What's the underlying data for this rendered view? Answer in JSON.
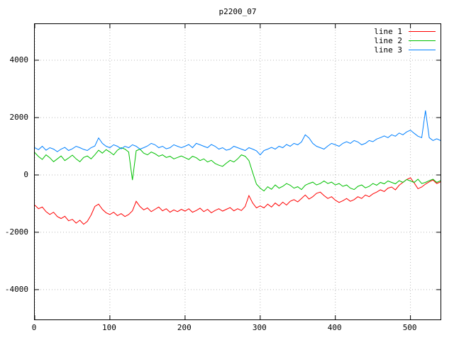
{
  "chart_data": {
    "type": "line",
    "title": "p2200_07",
    "xlabel": "",
    "ylabel": "",
    "xlim": [
      0,
      540
    ],
    "ylim": [
      -5040,
      5260
    ],
    "xticks": [
      0,
      100,
      200,
      300,
      400,
      500
    ],
    "yticks": [
      -4000,
      -2000,
      0,
      2000,
      4000
    ],
    "grid": true,
    "legend_position": "top-right",
    "x": [
      0,
      5,
      10,
      15,
      20,
      25,
      30,
      35,
      40,
      45,
      50,
      55,
      60,
      65,
      70,
      75,
      80,
      85,
      90,
      95,
      100,
      105,
      110,
      115,
      120,
      125,
      130,
      135,
      140,
      145,
      150,
      155,
      160,
      165,
      170,
      175,
      180,
      185,
      190,
      195,
      200,
      205,
      210,
      215,
      220,
      225,
      230,
      235,
      240,
      245,
      250,
      255,
      260,
      265,
      270,
      275,
      280,
      285,
      290,
      295,
      300,
      305,
      310,
      315,
      320,
      325,
      330,
      335,
      340,
      345,
      350,
      355,
      360,
      365,
      370,
      375,
      380,
      385,
      390,
      395,
      400,
      405,
      410,
      415,
      420,
      425,
      430,
      435,
      440,
      445,
      450,
      455,
      460,
      465,
      470,
      475,
      480,
      485,
      490,
      495,
      500,
      505,
      510,
      515,
      520,
      525,
      530,
      535,
      540
    ],
    "series": [
      {
        "name": "line 1",
        "color": "#ff0000",
        "values": [
          -1050,
          -1180,
          -1120,
          -1280,
          -1380,
          -1300,
          -1450,
          -1520,
          -1440,
          -1600,
          -1550,
          -1680,
          -1580,
          -1720,
          -1620,
          -1400,
          -1100,
          -1020,
          -1200,
          -1320,
          -1380,
          -1300,
          -1420,
          -1350,
          -1450,
          -1380,
          -1250,
          -920,
          -1100,
          -1220,
          -1150,
          -1280,
          -1200,
          -1120,
          -1250,
          -1180,
          -1300,
          -1220,
          -1280,
          -1200,
          -1260,
          -1180,
          -1300,
          -1240,
          -1160,
          -1280,
          -1200,
          -1320,
          -1240,
          -1180,
          -1260,
          -1200,
          -1140,
          -1250,
          -1180,
          -1240,
          -1100,
          -720,
          -980,
          -1150,
          -1080,
          -1150,
          -1020,
          -1120,
          -980,
          -1080,
          -950,
          -1050,
          -920,
          -860,
          -940,
          -820,
          -700,
          -840,
          -760,
          -640,
          -600,
          -720,
          -820,
          -760,
          -880,
          -960,
          -900,
          -820,
          -920,
          -860,
          -760,
          -820,
          -700,
          -760,
          -660,
          -600,
          -520,
          -580,
          -460,
          -420,
          -520,
          -360,
          -260,
          -160,
          -100,
          -280,
          -480,
          -420,
          -320,
          -240,
          -180,
          -300,
          -240
        ]
      },
      {
        "name": "line 2",
        "color": "#00c000",
        "values": [
          780,
          640,
          540,
          700,
          600,
          460,
          560,
          660,
          500,
          590,
          690,
          560,
          460,
          610,
          660,
          560,
          700,
          860,
          760,
          880,
          800,
          700,
          860,
          950,
          900,
          800,
          -180,
          840,
          900,
          760,
          700,
          800,
          740,
          650,
          700,
          610,
          650,
          560,
          610,
          660,
          600,
          540,
          650,
          600,
          500,
          560,
          450,
          510,
          400,
          340,
          300,
          410,
          510,
          450,
          560,
          700,
          650,
          500,
          80,
          -320,
          -460,
          -560,
          -410,
          -500,
          -350,
          -460,
          -400,
          -300,
          -360,
          -460,
          -410,
          -510,
          -360,
          -300,
          -250,
          -350,
          -300,
          -210,
          -300,
          -250,
          -350,
          -300,
          -400,
          -350,
          -460,
          -510,
          -400,
          -350,
          -450,
          -400,
          -300,
          -360,
          -260,
          -310,
          -210,
          -260,
          -310,
          -200,
          -260,
          -160,
          -210,
          -260,
          -150,
          -300,
          -260,
          -200,
          -150,
          -260,
          -200
        ]
      },
      {
        "name": "line 3",
        "color": "#0080ff",
        "values": [
          950,
          880,
          1000,
          860,
          950,
          900,
          810,
          900,
          960,
          850,
          910,
          1000,
          950,
          890,
          850,
          950,
          1010,
          1290,
          1100,
          1000,
          950,
          1050,
          1000,
          910,
          1000,
          950,
          1050,
          1000,
          900,
          950,
          1010,
          1100,
          1050,
          950,
          1000,
          910,
          950,
          1050,
          1000,
          950,
          1000,
          1060,
          950,
          1100,
          1050,
          1000,
          950,
          1060,
          1000,
          900,
          950,
          860,
          900,
          1000,
          950,
          900,
          850,
          950,
          900,
          840,
          700,
          850,
          900,
          960,
          900,
          1000,
          950,
          1060,
          1000,
          1100,
          1050,
          1150,
          1400,
          1290,
          1100,
          1000,
          950,
          900,
          1010,
          1100,
          1050,
          1000,
          1100,
          1160,
          1100,
          1200,
          1150,
          1050,
          1100,
          1200,
          1160,
          1250,
          1300,
          1360,
          1300,
          1400,
          1350,
          1460,
          1400,
          1500,
          1560,
          1450,
          1350,
          1300,
          2250,
          1300,
          1200,
          1260,
          1200
        ]
      }
    ]
  }
}
